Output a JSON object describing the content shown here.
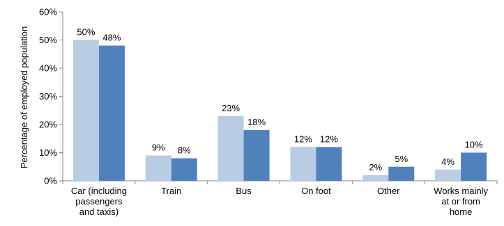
{
  "chart_data": {
    "type": "bar",
    "title": "",
    "xlabel": "",
    "ylabel": "Percentage of employed population",
    "ylim": [
      0,
      60
    ],
    "yticks": [
      "0%",
      "10%",
      "20%",
      "30%",
      "40%",
      "50%",
      "60%"
    ],
    "tick_values": [
      0,
      10,
      20,
      30,
      40,
      50,
      60
    ],
    "grid": false,
    "legend": "none",
    "categories": [
      [
        "Car (including",
        "passengers",
        "and taxis)"
      ],
      [
        "Train"
      ],
      [
        "Bus"
      ],
      [
        "On foot"
      ],
      [
        "Other"
      ],
      [
        "Works mainly",
        "at or from",
        "home"
      ]
    ],
    "series": [
      {
        "color": "#b8cce4",
        "values": [
          50,
          9,
          23,
          12,
          2,
          4
        ],
        "labels": [
          "50%",
          "9%",
          "23%",
          "12%",
          "2%",
          "4%"
        ]
      },
      {
        "color": "#4f81bd",
        "values": [
          48,
          8,
          18,
          12,
          5,
          10
        ],
        "labels": [
          "48%",
          "8%",
          "18%",
          "12%",
          "5%",
          "10%"
        ]
      }
    ]
  }
}
